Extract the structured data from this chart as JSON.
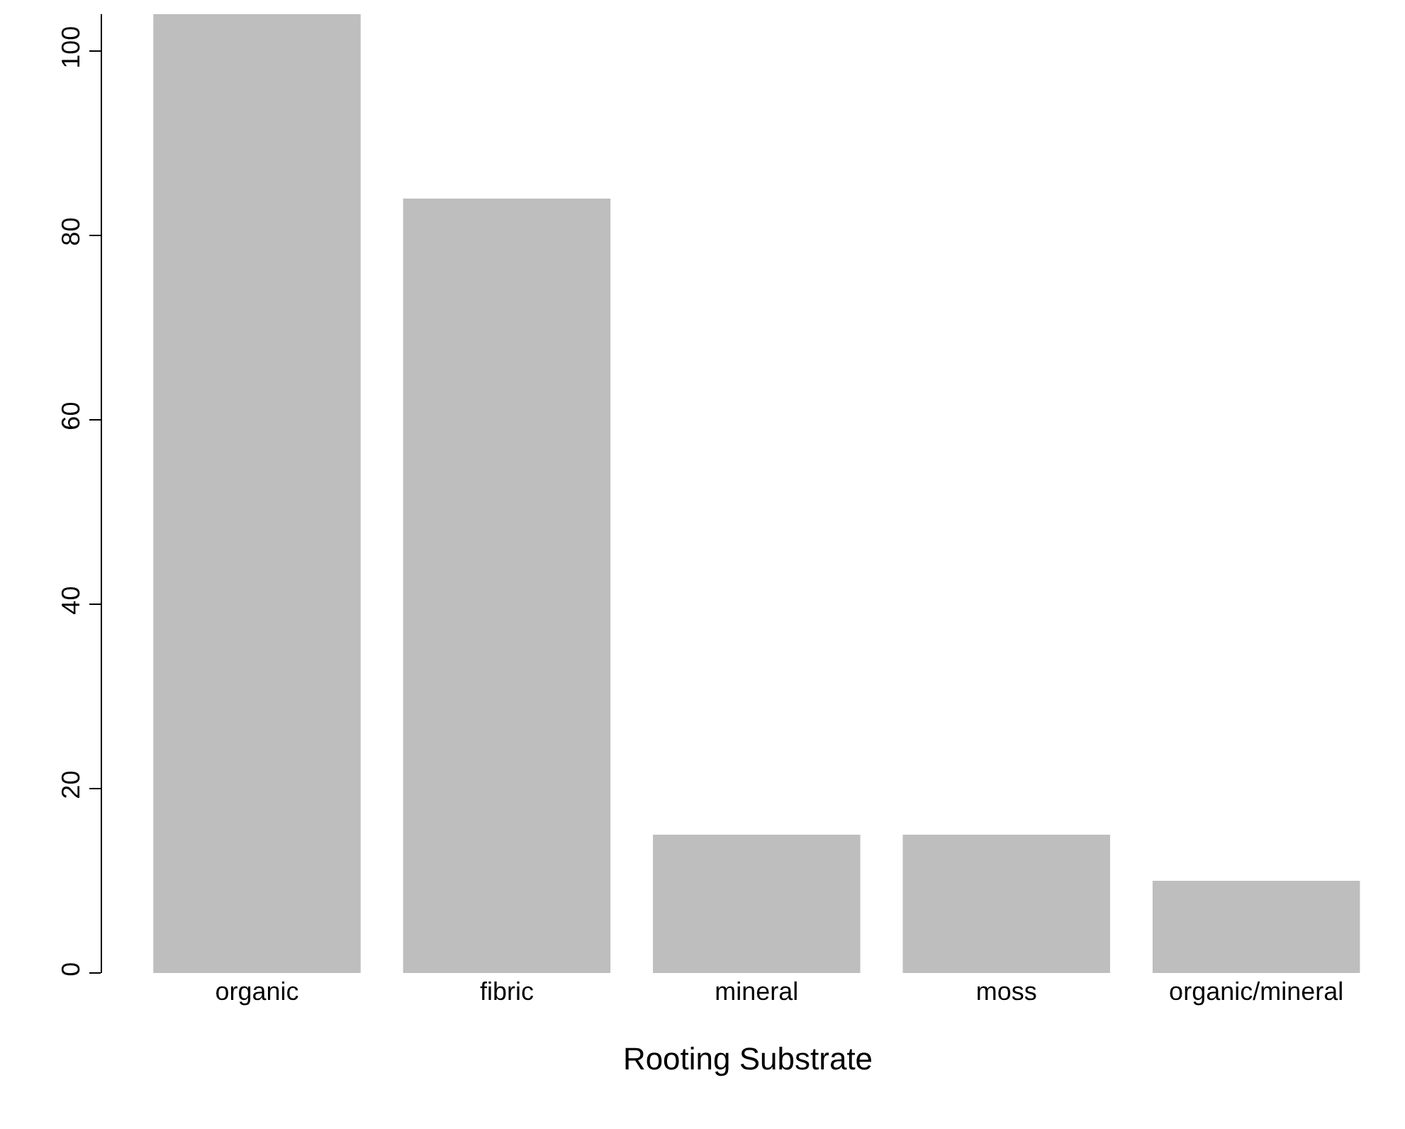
{
  "chart_data": {
    "type": "bar",
    "xlabel": "Rooting Substrate",
    "categories": [
      "organic",
      "fibric",
      "mineral",
      "moss",
      "organic/mineral"
    ],
    "values": [
      104,
      84,
      15,
      15,
      10
    ],
    "color": "#bebebe",
    "ylim": [
      0,
      104
    ],
    "yticks": [
      0,
      20,
      40,
      60,
      80,
      100
    ],
    "grid": false
  }
}
